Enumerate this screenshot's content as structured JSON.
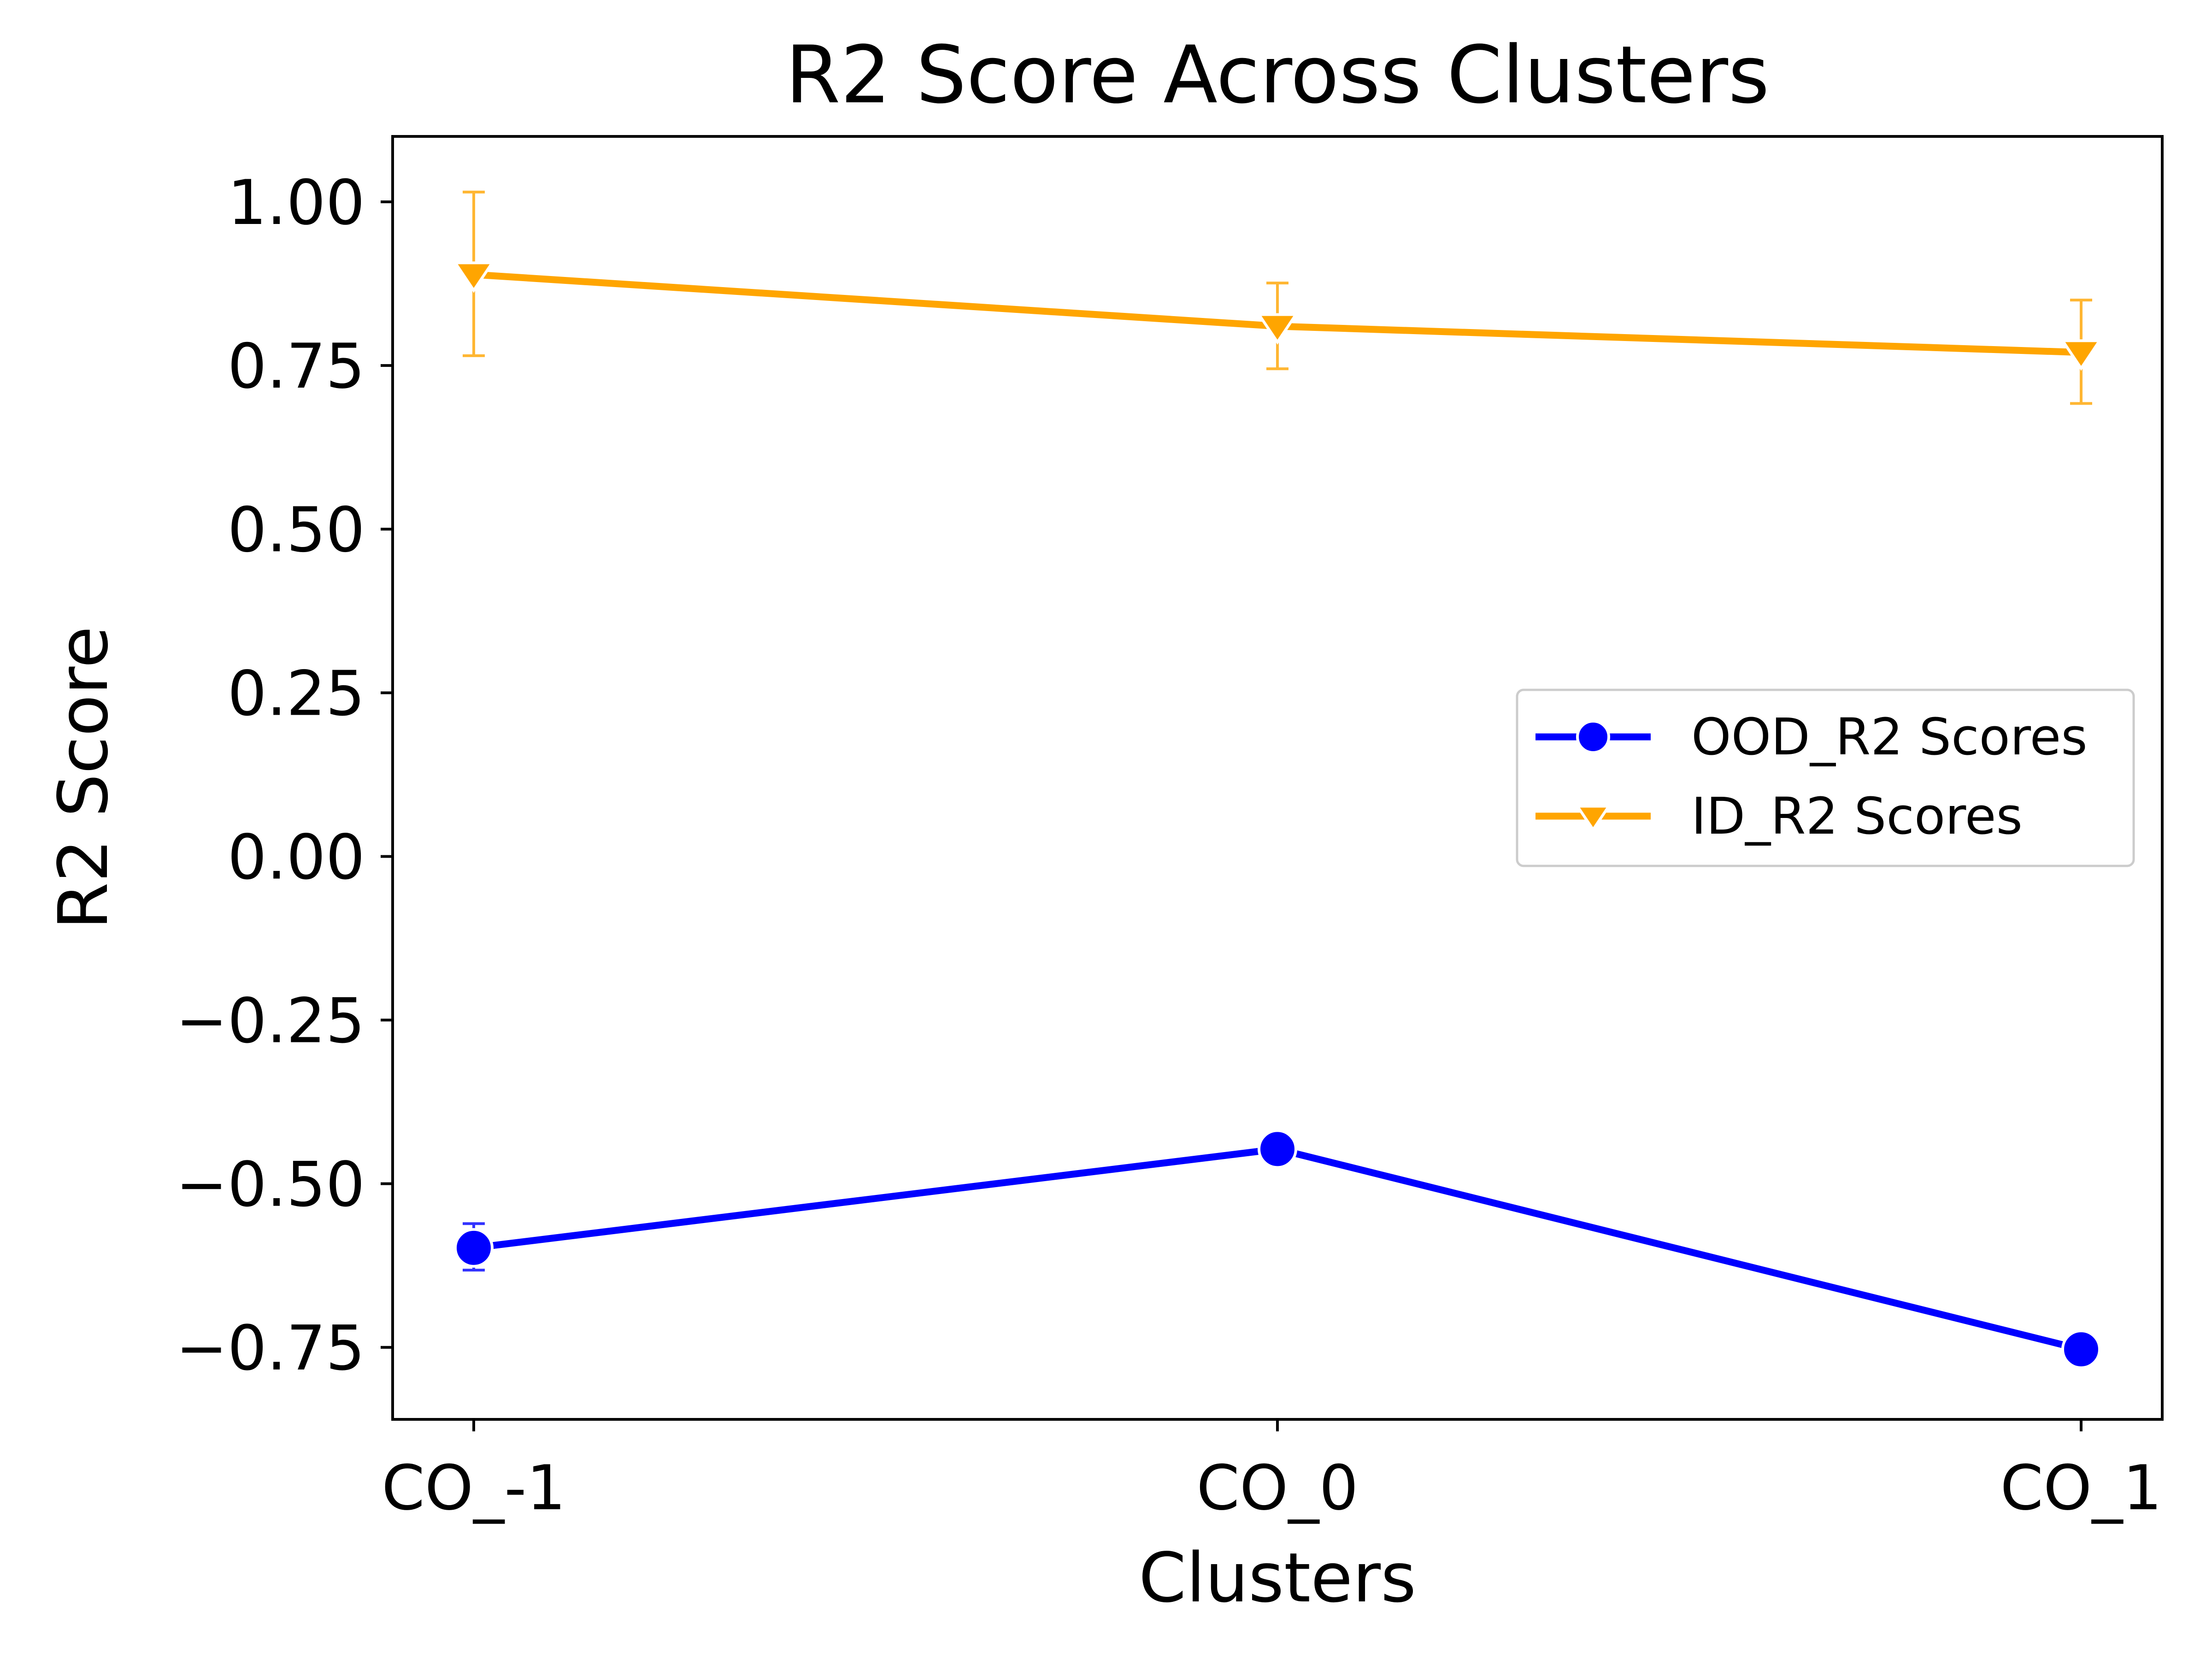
{
  "chart_data": {
    "type": "line",
    "title": "R2 Score Across Clusters",
    "xlabel": "Clusters",
    "ylabel": "R2 Score",
    "categories": [
      "CO_-1",
      "CO_0",
      "CO_1"
    ],
    "ylim": [
      -0.86,
      1.1
    ],
    "yticks": [
      1.0,
      0.75,
      0.5,
      0.25,
      0.0,
      -0.25,
      -0.5,
      -0.75
    ],
    "ytick_labels": [
      "1.00",
      "0.75",
      "0.50",
      "0.25",
      "0.00",
      "−0.25",
      "−0.50",
      "−0.75"
    ],
    "grid": false,
    "legend_position": "center-right",
    "series": [
      {
        "name": "OOD_R2 Scores",
        "color": "#0000ff",
        "marker": "circle",
        "values": [
          -0.598,
          -0.447,
          -0.753
        ],
        "err_low": [
          -0.632,
          null,
          null
        ],
        "err_high": [
          -0.561,
          null,
          null
        ]
      },
      {
        "name": "ID_R2 Scores",
        "color": "#ffa500",
        "marker": "triangle-down",
        "values": [
          0.889,
          0.81,
          0.77
        ],
        "err_low": [
          0.765,
          0.745,
          0.692
        ],
        "err_high": [
          1.015,
          0.876,
          0.85
        ]
      }
    ]
  }
}
